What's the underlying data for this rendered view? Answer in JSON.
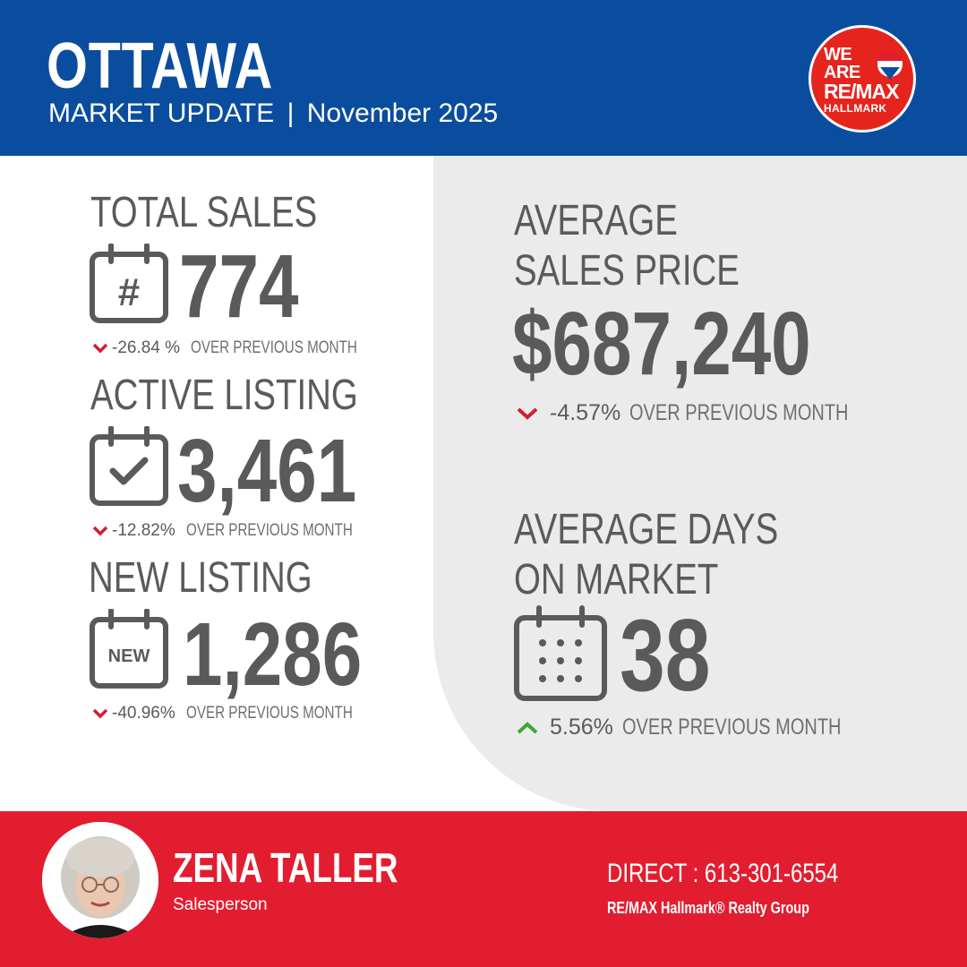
{
  "header": {
    "city": "OTTAWA",
    "subtitle": "MARKET UPDATE",
    "separator": "|",
    "period": "November 2025",
    "logo": {
      "line1": "WE",
      "line2": "ARE",
      "line3": "RE/MAX",
      "line4": "HALLMARK"
    }
  },
  "stats": {
    "total_sales": {
      "label": "TOTAL SALES",
      "value": "774",
      "change": "-26.84 %",
      "note": "OVER PREVIOUS MONTH",
      "direction": "down",
      "icon": "hash-calendar-icon"
    },
    "active_listing": {
      "label": "ACTIVE LISTING",
      "value": "3,461",
      "change": "-12.82%",
      "note": "OVER PREVIOUS MONTH",
      "direction": "down",
      "icon": "check-calendar-icon"
    },
    "new_listing": {
      "label": "NEW LISTING",
      "value": "1,286",
      "change": "-40.96%",
      "note": "OVER PREVIOUS MONTH",
      "direction": "down",
      "icon": "new-calendar-icon"
    },
    "avg_price": {
      "label_line1": "AVERAGE",
      "label_line2": "SALES PRICE",
      "value": "$687,240",
      "change": "-4.57%",
      "note": "OVER PREVIOUS MONTH",
      "direction": "down"
    },
    "avg_days": {
      "label_line1": "AVERAGE DAYS",
      "label_line2": "ON MARKET",
      "value": "38",
      "change": "5.56%",
      "note": "OVER PREVIOUS MONTH",
      "direction": "up",
      "icon": "dots-calendar-icon"
    }
  },
  "agent": {
    "name": "ZENA TALLER",
    "role": "Salesperson",
    "direct": "DIRECT : 613-301-6554",
    "brokerage": "RE/MAX Hallmark® Realty Group"
  },
  "colors": {
    "header_blue": "#0a4d9e",
    "footer_red": "#e31d30",
    "text_gray": "#5a5a5a",
    "panel_gray": "#ebebeb",
    "down_arrow": "#d0202e",
    "up_arrow": "#3aa935"
  }
}
